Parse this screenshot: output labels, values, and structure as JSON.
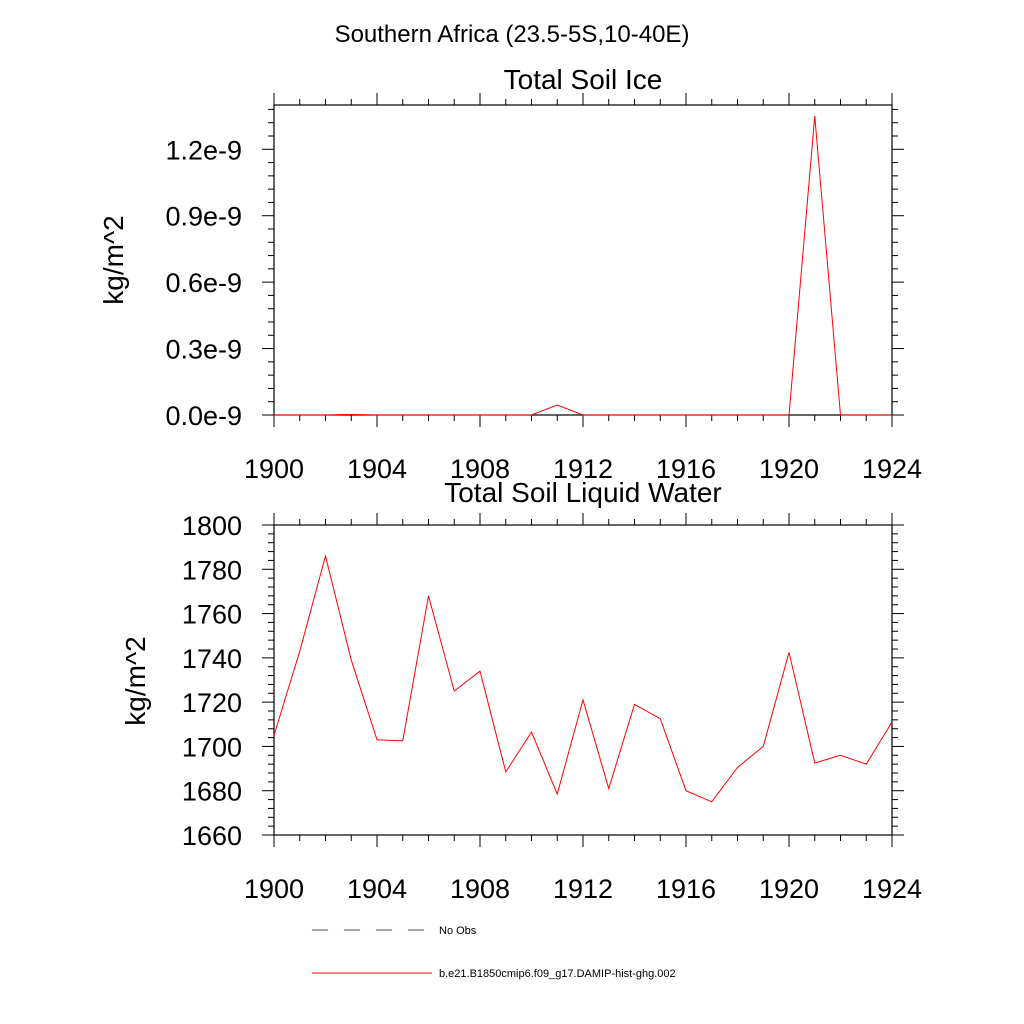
{
  "figure": {
    "suptitle": "Southern Africa (23.5-5S,10-40E)"
  },
  "legend": {
    "items": [
      {
        "label": "No Obs",
        "color": "#4a4a6a",
        "style": "dashed"
      },
      {
        "label": "b.e21.B1850cmip6.f09_g17.DAMIP-hist-ghg.002",
        "color": "#ff0000",
        "style": "solid"
      }
    ]
  },
  "chart_data": [
    {
      "type": "line",
      "title": "Total Soil Ice",
      "ylabel": "kg/m^2",
      "xlabel": "",
      "xlim": [
        1900,
        1924
      ],
      "ylim": [
        0,
        1.4e-09
      ],
      "xticks": [
        1900,
        1904,
        1908,
        1912,
        1916,
        1920,
        1924
      ],
      "xtick_labels": [
        "1900",
        "1904",
        "1908",
        "1912",
        "1916",
        "1920",
        "1924"
      ],
      "yticks": [
        0,
        3e-10,
        6e-10,
        9e-10,
        1.2e-09
      ],
      "ytick_labels": [
        "0.0e-9",
        "0.3e-9",
        "0.6e-9",
        "0.9e-9",
        "1.2e-9"
      ],
      "grid": false,
      "series": [
        {
          "name": "b.e21.B1850cmip6.f09_g17.DAMIP-hist-ghg.002",
          "color": "#ff0000",
          "x": [
            1900,
            1901,
            1902,
            1903,
            1904,
            1905,
            1906,
            1907,
            1908,
            1909,
            1910,
            1911,
            1912,
            1913,
            1914,
            1915,
            1916,
            1917,
            1918,
            1919,
            1920,
            1921,
            1922,
            1923,
            1924
          ],
          "y": [
            0,
            0,
            0,
            2e-12,
            0,
            0,
            0,
            0,
            0,
            0,
            0,
            4.5e-11,
            0,
            0,
            0,
            0,
            0,
            0,
            0,
            0,
            0,
            1.35e-09,
            0,
            0,
            0
          ]
        }
      ]
    },
    {
      "type": "line",
      "title": "Total Soil Liquid Water",
      "ylabel": "kg/m^2",
      "xlabel": "",
      "xlim": [
        1900,
        1924
      ],
      "ylim": [
        1660,
        1800
      ],
      "xticks": [
        1900,
        1904,
        1908,
        1912,
        1916,
        1920,
        1924
      ],
      "xtick_labels": [
        "1900",
        "1904",
        "1908",
        "1912",
        "1916",
        "1920",
        "1924"
      ],
      "yticks": [
        1660,
        1680,
        1700,
        1720,
        1740,
        1760,
        1780,
        1800
      ],
      "ytick_labels": [
        "1660",
        "1680",
        "1700",
        "1720",
        "1740",
        "1760",
        "1780",
        "1800"
      ],
      "grid": false,
      "series": [
        {
          "name": "b.e21.B1850cmip6.f09_g17.DAMIP-hist-ghg.002",
          "color": "#ff0000",
          "x": [
            1900,
            1901,
            1902,
            1903,
            1904,
            1905,
            1906,
            1907,
            1908,
            1909,
            1910,
            1911,
            1912,
            1913,
            1914,
            1915,
            1916,
            1917,
            1918,
            1919,
            1920,
            1921,
            1922,
            1923,
            1924
          ],
          "y": [
            1705,
            1743,
            1786,
            1739,
            1703,
            1702.5,
            1768,
            1725,
            1734,
            1688.5,
            1706.5,
            1678.5,
            1721,
            1681,
            1719,
            1712.5,
            1680,
            1675,
            1690.5,
            1700,
            1742.5,
            1692.5,
            1696,
            1692,
            1711
          ]
        }
      ]
    }
  ]
}
